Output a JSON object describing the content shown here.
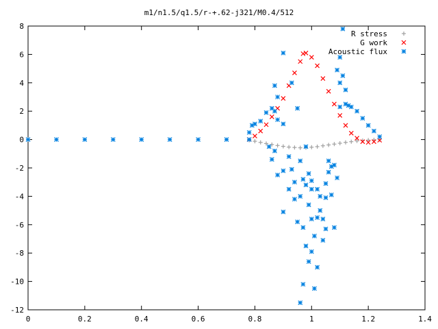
{
  "chart_data": {
    "type": "scatter",
    "title": "m1/n1.5/q1.5/r-+.62-j321/M0.4/512",
    "xlabel": "",
    "ylabel": "",
    "xlim": [
      0,
      1.4
    ],
    "ylim": [
      -12,
      8
    ],
    "x_ticks": [
      "0",
      "0.2",
      "0.4",
      "0.6",
      "0.8",
      "1",
      "1.2",
      "1.4"
    ],
    "y_ticks": [
      "8",
      "6",
      "4",
      "2",
      "0",
      "-2",
      "-4",
      "-6",
      "-8",
      "-10",
      "-12"
    ],
    "grid": false,
    "legend_position": "top-right",
    "series": [
      {
        "name": "R stress",
        "marker": "plus",
        "color": "#a0a0a0",
        "points": [
          [
            0.78,
            -0.05
          ],
          [
            0.8,
            -0.12
          ],
          [
            0.82,
            -0.2
          ],
          [
            0.84,
            -0.28
          ],
          [
            0.86,
            -0.35
          ],
          [
            0.88,
            -0.42
          ],
          [
            0.9,
            -0.48
          ],
          [
            0.92,
            -0.53
          ],
          [
            0.94,
            -0.56
          ],
          [
            0.96,
            -0.58
          ],
          [
            0.98,
            -0.57
          ],
          [
            1.0,
            -0.54
          ],
          [
            1.02,
            -0.5
          ],
          [
            1.04,
            -0.44
          ],
          [
            1.06,
            -0.38
          ],
          [
            1.08,
            -0.32
          ],
          [
            1.1,
            -0.26
          ],
          [
            1.12,
            -0.2
          ],
          [
            1.14,
            -0.15
          ],
          [
            1.16,
            -0.1
          ],
          [
            1.18,
            -0.07
          ],
          [
            1.2,
            -0.04
          ],
          [
            1.22,
            -0.02
          ],
          [
            1.24,
            -0.01
          ]
        ]
      },
      {
        "name": "G work",
        "marker": "cross",
        "color": "#ff0000",
        "points": [
          [
            0.78,
            0.0
          ],
          [
            0.8,
            0.25
          ],
          [
            0.82,
            0.6
          ],
          [
            0.84,
            1.05
          ],
          [
            0.86,
            1.6
          ],
          [
            0.88,
            2.2
          ],
          [
            0.9,
            2.9
          ],
          [
            0.92,
            3.8
          ],
          [
            0.94,
            4.7
          ],
          [
            0.96,
            5.5
          ],
          [
            0.97,
            6.05
          ],
          [
            0.98,
            6.1
          ],
          [
            1.0,
            5.8
          ],
          [
            1.02,
            5.2
          ],
          [
            1.04,
            4.3
          ],
          [
            1.06,
            3.4
          ],
          [
            1.08,
            2.5
          ],
          [
            1.1,
            1.7
          ],
          [
            1.12,
            1.0
          ],
          [
            1.14,
            0.45
          ],
          [
            1.16,
            0.1
          ],
          [
            1.18,
            -0.15
          ],
          [
            1.2,
            -0.2
          ],
          [
            1.22,
            -0.15
          ],
          [
            1.24,
            -0.05
          ]
        ]
      },
      {
        "name": "Acoustic flux",
        "marker": "star",
        "color": "#0080e0",
        "points": [
          [
            0.0,
            0.0
          ],
          [
            0.1,
            0.0
          ],
          [
            0.2,
            0.0
          ],
          [
            0.3,
            0.0
          ],
          [
            0.4,
            0.0
          ],
          [
            0.5,
            0.0
          ],
          [
            0.6,
            0.0
          ],
          [
            0.7,
            0.0
          ],
          [
            0.78,
            0.0
          ],
          [
            0.78,
            0.5
          ],
          [
            0.79,
            1.0
          ],
          [
            0.8,
            1.1
          ],
          [
            0.82,
            1.3
          ],
          [
            0.84,
            1.9
          ],
          [
            0.86,
            2.2
          ],
          [
            0.87,
            2.0
          ],
          [
            0.88,
            1.4
          ],
          [
            0.87,
            3.8
          ],
          [
            0.88,
            3.0
          ],
          [
            0.9,
            6.1
          ],
          [
            0.9,
            -5.1
          ],
          [
            0.9,
            -2.2
          ],
          [
            0.9,
            1.1
          ],
          [
            0.92,
            -1.2
          ],
          [
            0.92,
            -3.5
          ],
          [
            0.93,
            -2.1
          ],
          [
            0.94,
            -4.2
          ],
          [
            0.94,
            -3.0
          ],
          [
            0.95,
            -5.8
          ],
          [
            0.95,
            2.2
          ],
          [
            0.96,
            -1.5
          ],
          [
            0.96,
            -4.0
          ],
          [
            0.97,
            -2.8
          ],
          [
            0.97,
            -10.2
          ],
          [
            0.97,
            -6.2
          ],
          [
            0.98,
            -3.2
          ],
          [
            0.98,
            -7.5
          ],
          [
            0.98,
            -0.5
          ],
          [
            0.99,
            -2.4
          ],
          [
            0.99,
            -4.6
          ],
          [
            0.99,
            -8.6
          ],
          [
            1.0,
            -2.9
          ],
          [
            1.0,
            -3.5
          ],
          [
            1.0,
            -5.6
          ],
          [
            1.0,
            -7.9
          ],
          [
            1.01,
            -6.8
          ],
          [
            1.02,
            -3.5
          ],
          [
            1.02,
            -5.5
          ],
          [
            1.03,
            -4.0
          ],
          [
            1.03,
            -5.0
          ],
          [
            1.04,
            -5.6
          ],
          [
            1.04,
            -7.1
          ],
          [
            1.05,
            -4.1
          ],
          [
            1.05,
            -3.1
          ],
          [
            1.06,
            -1.5
          ],
          [
            1.06,
            -2.3
          ],
          [
            1.07,
            -1.9
          ],
          [
            1.07,
            -3.9
          ],
          [
            1.08,
            -1.8
          ],
          [
            1.08,
            -6.2
          ],
          [
            1.09,
            -2.7
          ],
          [
            1.09,
            4.9
          ],
          [
            1.1,
            5.8
          ],
          [
            1.1,
            4.0
          ],
          [
            1.1,
            2.3
          ],
          [
            1.11,
            7.8
          ],
          [
            1.11,
            4.5
          ],
          [
            1.12,
            2.5
          ],
          [
            1.12,
            3.5
          ],
          [
            1.13,
            2.4
          ],
          [
            1.14,
            2.3
          ],
          [
            1.16,
            2.0
          ],
          [
            1.18,
            1.5
          ],
          [
            1.2,
            1.0
          ],
          [
            1.22,
            0.6
          ],
          [
            1.24,
            0.2
          ],
          [
            0.85,
            -0.5
          ],
          [
            0.86,
            -1.4
          ],
          [
            0.87,
            -0.8
          ],
          [
            0.88,
            -2.5
          ],
          [
            0.93,
            4.0
          ],
          [
            0.96,
            -11.5
          ],
          [
            1.01,
            -10.5
          ],
          [
            1.02,
            -9.0
          ],
          [
            1.05,
            -6.3
          ]
        ]
      }
    ]
  }
}
